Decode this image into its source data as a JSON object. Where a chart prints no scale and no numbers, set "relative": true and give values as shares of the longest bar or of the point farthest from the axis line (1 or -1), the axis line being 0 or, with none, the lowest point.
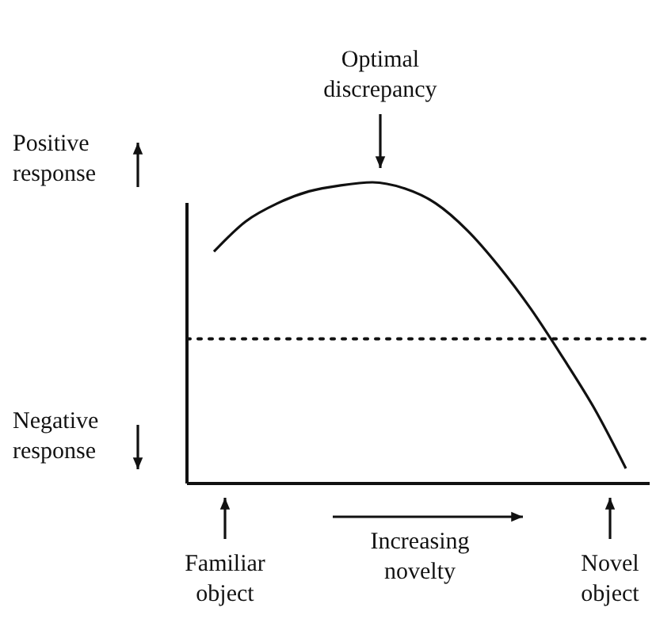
{
  "chart_data": {
    "type": "line",
    "relative": true,
    "color": "#111111",
    "categories": [
      null,
      null,
      null,
      null,
      null,
      null,
      null,
      null,
      null,
      null,
      null,
      null,
      null,
      null
    ],
    "values": [
      0.77,
      0.87,
      0.93,
      0.97,
      0.99,
      1,
      0.98,
      0.93,
      0.84,
      0.72,
      0.58,
      0.42,
      0.25,
      0.05
    ],
    "ref_lines": [
      {
        "axis": "y",
        "value": 0.48,
        "line_style": "dotted",
        "color": "#111111"
      }
    ],
    "annotations": [
      "Optimal discrepancy",
      "Positive response",
      "Negative response",
      "Familiar object",
      "Increasing novelty",
      "Novel object"
    ]
  }
}
